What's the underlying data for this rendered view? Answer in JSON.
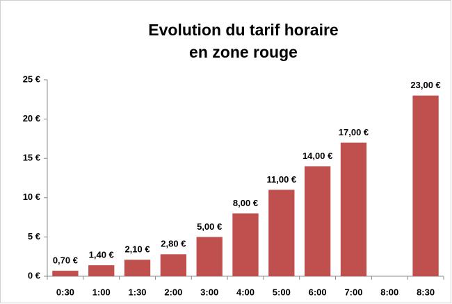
{
  "chart_data": {
    "type": "bar",
    "title": [
      "Evolution du tarif horaire",
      "en zone rouge"
    ],
    "categories": [
      "0:30",
      "1:00",
      "1:30",
      "2:00",
      "3:00",
      "4:00",
      "5:00",
      "6:00",
      "7:00",
      "8:00",
      "8:30"
    ],
    "values": [
      0.7,
      1.4,
      2.1,
      2.8,
      5,
      8,
      11,
      14,
      17,
      null,
      23
    ],
    "value_labels": [
      "0,70 €",
      "1,40 €",
      "2,10 €",
      "2,80 €",
      "5,00 €",
      "8,00 €",
      "11,00 €",
      "14,00 €",
      "17,00 €",
      null,
      "23,00 €"
    ],
    "color": "#c0504d",
    "ylim": [
      0,
      25
    ],
    "yticks": [
      {
        "value": 0,
        "label": "0 €"
      },
      {
        "value": 5,
        "label": "5 €"
      },
      {
        "value": 10,
        "label": "10 €"
      },
      {
        "value": 15,
        "label": "15 €"
      },
      {
        "value": 20,
        "label": "20 €"
      },
      {
        "value": 25,
        "label": "25 €"
      }
    ],
    "grid": false
  }
}
